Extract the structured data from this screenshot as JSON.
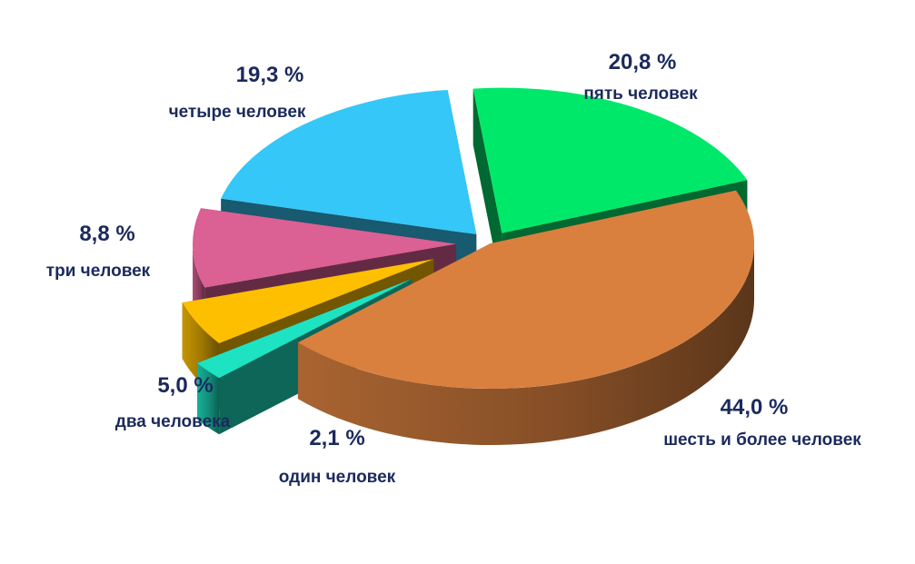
{
  "chart_data": {
    "type": "pie",
    "style": "3d-exploded",
    "categories": [
      "один человек",
      "два человека",
      "три человек",
      "четыре человек",
      "пять человек",
      "шесть и более человек"
    ],
    "values": [
      2.1,
      5.0,
      8.8,
      19.3,
      20.8,
      44.0
    ],
    "value_labels": [
      "2,1 %",
      "5,0 %",
      "8,8 %",
      "19,3 %",
      "20,8 %",
      "44,0 %"
    ],
    "colors": [
      "#1de3c3",
      "#fdbf00",
      "#db6094",
      "#35c7f7",
      "#00e86a",
      "#d9803f"
    ],
    "title": "",
    "legend": "none"
  }
}
